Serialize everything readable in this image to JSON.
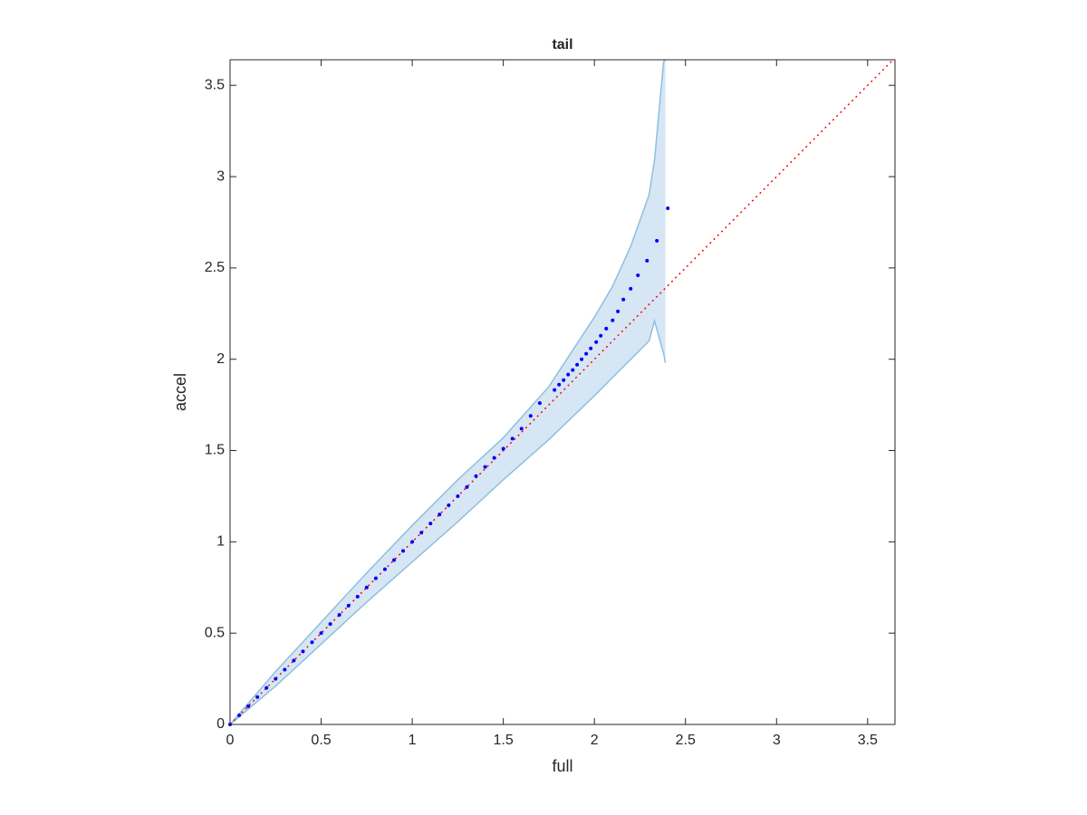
{
  "chart_data": {
    "type": "scatter",
    "title": "tail",
    "xlabel": "full",
    "ylabel": "accel",
    "xlim": [
      0,
      3.65
    ],
    "ylim": [
      0,
      3.64
    ],
    "xticks": [
      0,
      0.5,
      1,
      1.5,
      2,
      2.5,
      3,
      3.5
    ],
    "yticks": [
      0,
      0.5,
      1,
      1.5,
      2,
      2.5,
      3,
      3.5
    ],
    "color": "#0000ff",
    "x": [
      0,
      0.05,
      0.1,
      0.15,
      0.2,
      0.25,
      0.3,
      0.35,
      0.4,
      0.45,
      0.5,
      0.55,
      0.6,
      0.65,
      0.7,
      0.75,
      0.8,
      0.85,
      0.9,
      0.95,
      1,
      1.05,
      1.1,
      1.15,
      1.2,
      1.25,
      1.3,
      1.35,
      1.4,
      1.45,
      1.5,
      1.55,
      1.6,
      1.65,
      1.7,
      1.781,
      1.806,
      1.831,
      1.856,
      1.881,
      1.905,
      1.93,
      1.955,
      1.98,
      2.01,
      2.035,
      2.065,
      2.1,
      2.129,
      2.159,
      2.199,
      2.239,
      2.289,
      2.343,
      2.403
    ],
    "values": [
      0,
      0.05,
      0.1,
      0.15,
      0.2,
      0.25,
      0.3,
      0.35,
      0.4,
      0.45,
      0.5,
      0.55,
      0.6,
      0.65,
      0.7,
      0.75,
      0.8,
      0.85,
      0.9,
      0.95,
      1,
      1.05,
      1.1,
      1.15,
      1.2,
      1.25,
      1.3,
      1.36,
      1.41,
      1.46,
      1.51,
      1.565,
      1.62,
      1.69,
      1.76,
      1.832,
      1.861,
      1.886,
      1.916,
      1.941,
      1.97,
      2.0,
      2.03,
      2.059,
      2.094,
      2.129,
      2.168,
      2.213,
      2.262,
      2.327,
      2.386,
      2.46,
      2.54,
      2.649,
      2.827
    ],
    "band": {
      "color": "#d6e6f4",
      "edge_color": "#8fbfdf",
      "x": [
        0,
        0.25,
        0.5,
        0.75,
        1,
        1.25,
        1.5,
        1.75,
        2,
        2.1,
        2.2,
        2.3,
        2.33,
        2.38,
        2.39
      ],
      "upper": [
        0,
        0.29,
        0.56,
        0.83,
        1.09,
        1.34,
        1.57,
        1.85,
        2.23,
        2.4,
        2.62,
        2.9,
        3.09,
        3.63,
        3.64
      ],
      "lower": [
        0,
        0.21,
        0.44,
        0.67,
        0.89,
        1.11,
        1.34,
        1.56,
        1.8,
        1.9,
        2.0,
        2.1,
        2.21,
        2.03,
        1.98
      ]
    },
    "reference_line": {
      "color": "#ff0000",
      "x": [
        0,
        3.64
      ],
      "y": [
        0,
        3.64
      ]
    }
  }
}
